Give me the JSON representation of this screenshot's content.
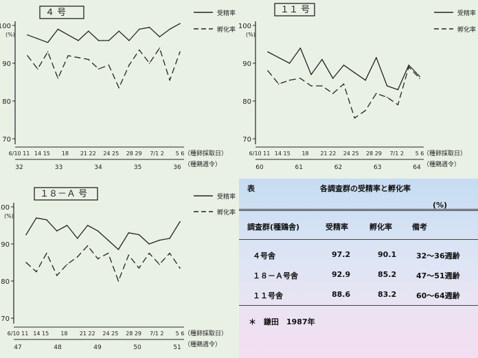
{
  "panels": [
    {
      "id": "4",
      "title_text": "４ 号",
      "legend": [
        {
          "label": "受精率",
          "dash": false
        },
        {
          "label": "孵化率",
          "dash": true
        }
      ],
      "y_axis": {
        "ticks": [
          "100",
          "90",
          "80",
          "70"
        ],
        "unit": "(%)"
      },
      "x_axis": {
        "dates": [
          "6/10 11",
          "14 15",
          "18",
          "21 22",
          "24 25",
          "28 29",
          "7/1 2",
          "5 6"
        ],
        "weeks": [
          "32",
          "33",
          "34",
          "35",
          "36"
        ],
        "label_dates": "（種卵採取日）",
        "label_weeks": "（種鶏週令）"
      }
    },
    {
      "id": "11",
      "title_text": "１１ 号",
      "legend": [
        {
          "label": "受精率",
          "dash": false
        },
        {
          "label": "孵化率",
          "dash": true
        }
      ],
      "y_axis": {
        "ticks": [
          "100",
          "90",
          "80",
          "70"
        ],
        "unit": "(%)"
      },
      "x_axis": {
        "dates": [
          "6/10 11",
          "14 15",
          "18",
          "21 22",
          "24 25",
          "28 29",
          "7/1 2",
          "5 6"
        ],
        "weeks": [
          "60",
          "61",
          "62",
          "63",
          "64"
        ],
        "label_dates": "（種卵採取日）",
        "label_weeks": "（種鶏週令）"
      }
    },
    {
      "id": "18",
      "title_text": "１８－Ａ 号",
      "legend": [
        {
          "label": "受精率",
          "dash": false
        },
        {
          "label": "孵化率",
          "dash": true
        }
      ],
      "y_axis": {
        "ticks": [
          "100",
          "90",
          "80",
          "70"
        ],
        "unit": "(%)"
      },
      "x_axis": {
        "dates": [
          "6/10 11",
          "14 15",
          "18",
          "21 22",
          "24 25",
          "28 29",
          "7/1 2",
          "5 6"
        ],
        "weeks": [
          "47",
          "48",
          "49",
          "50",
          "51"
        ],
        "label_dates": "（種卵採取日）",
        "label_weeks": "（種鶏週令）"
      }
    }
  ],
  "chart_data": [
    {
      "type": "line",
      "title": "４ 号",
      "ylim": [
        70,
        100
      ],
      "x_order": [
        1,
        2,
        3,
        4,
        5,
        6,
        7,
        8,
        9,
        10,
        11,
        12,
        13,
        14,
        15,
        16
      ],
      "series": [
        {
          "name": "受精率",
          "values": [
            97.5,
            96.5,
            95.5,
            99,
            97.5,
            96,
            98.5,
            96,
            96,
            98.5,
            96,
            99,
            99.5,
            97,
            99,
            100.5
          ]
        },
        {
          "name": "孵化率",
          "values": [
            92,
            88.5,
            93,
            86,
            92,
            91.5,
            91,
            88.5,
            89.5,
            83.5,
            89.5,
            93.5,
            90,
            94,
            85.5,
            93
          ]
        }
      ]
    },
    {
      "type": "line",
      "title": "１１ 号",
      "ylim": [
        70,
        100
      ],
      "x_order": [
        1,
        2,
        3,
        4,
        5,
        6,
        7,
        8,
        9,
        10,
        11,
        12,
        13,
        14,
        15
      ],
      "series": [
        {
          "name": "受精率",
          "values": [
            93,
            91.5,
            90,
            94,
            87,
            91,
            86,
            89.5,
            87.5,
            85.5,
            91.5,
            84,
            83,
            89.5,
            86.5
          ]
        },
        {
          "name": "孵化率",
          "values": [
            88,
            84.5,
            85.5,
            86,
            84,
            84,
            82,
            84.5,
            75.5,
            77.5,
            82,
            81,
            79,
            89,
            86
          ]
        }
      ]
    },
    {
      "type": "line",
      "title": "１８－Ａ 号",
      "ylim": [
        70,
        100
      ],
      "x_order": [
        1,
        2,
        3,
        4,
        5,
        6,
        7,
        8,
        9,
        10,
        11,
        12,
        13,
        14,
        15,
        16
      ],
      "series": [
        {
          "name": "受精率",
          "values": [
            92.5,
            97,
            96.5,
            93.5,
            95,
            91.5,
            95,
            93.5,
            91,
            88.5,
            93,
            92.5,
            90,
            91,
            91.5,
            96
          ]
        },
        {
          "name": "孵化率",
          "values": [
            85,
            82.5,
            87.5,
            81.5,
            84.5,
            86.5,
            89.5,
            86,
            87.5,
            80,
            87,
            83.5,
            87.5,
            84.5,
            87.5,
            83.5
          ]
        }
      ]
    },
    {
      "type": "table",
      "title": "各調査群の受精率と孵化率",
      "unit": "(%)",
      "columns": [
        "調査群(種鶏舎)",
        "受精率",
        "孵化率",
        "備考"
      ],
      "rows": [
        [
          "４号舎",
          "97.2",
          "90.1",
          "32～36週齢"
        ],
        [
          "１８－Ａ号舎",
          "92.9",
          "85.2",
          "47～51週齢"
        ],
        [
          "１１号舎",
          "88.6",
          "83.2",
          "60～64週齢"
        ]
      ]
    }
  ],
  "table": {
    "label": "表",
    "title": "各調査群の受精率と孵化率",
    "unit": "(%)",
    "columns": [
      "調査群(種鶏舎)",
      "受精率",
      "孵化率",
      "備考"
    ],
    "rows": [
      [
        "４号舎",
        "97.2",
        "90.1",
        "32～36週齢"
      ],
      [
        "１８－Ａ号舎",
        "92.9",
        "85.2",
        "47～51週齢"
      ],
      [
        "１１号舎",
        "88.6",
        "83.2",
        "60～64週齢"
      ]
    ],
    "note": "＊　鎌田　1987年"
  }
}
